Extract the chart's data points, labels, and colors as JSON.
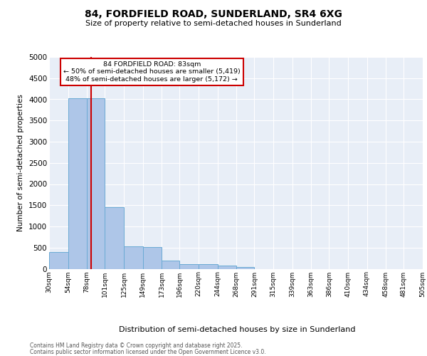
{
  "title": "84, FORDFIELD ROAD, SUNDERLAND, SR4 6XG",
  "subtitle": "Size of property relative to semi-detached houses in Sunderland",
  "xlabel": "Distribution of semi-detached houses by size in Sunderland",
  "ylabel": "Number of semi-detached properties",
  "annotation_title": "84 FORDFIELD ROAD: 83sqm",
  "annotation_line1": "← 50% of semi-detached houses are smaller (5,419)",
  "annotation_line2": "48% of semi-detached houses are larger (5,172) →",
  "footnote1": "Contains HM Land Registry data © Crown copyright and database right 2025.",
  "footnote2": "Contains public sector information licensed under the Open Government Licence v3.0.",
  "property_size": 83,
  "red_line_x": 83,
  "bins": [
    30,
    54,
    78,
    101,
    125,
    149,
    173,
    196,
    220,
    244,
    268,
    291,
    315,
    339,
    363,
    386,
    410,
    434,
    458,
    481,
    505
  ],
  "bin_labels": [
    "30sqm",
    "54sqm",
    "78sqm",
    "101sqm",
    "125sqm",
    "149sqm",
    "173sqm",
    "196sqm",
    "220sqm",
    "244sqm",
    "268sqm",
    "291sqm",
    "315sqm",
    "339sqm",
    "363sqm",
    "386sqm",
    "410sqm",
    "434sqm",
    "458sqm",
    "481sqm",
    "505sqm"
  ],
  "bar_heights": [
    390,
    4020,
    4030,
    1450,
    525,
    520,
    185,
    115,
    115,
    75,
    50,
    0,
    0,
    0,
    0,
    0,
    0,
    0,
    0,
    0
  ],
  "bar_color": "#aec6e8",
  "bar_edge_color": "#6aaad4",
  "red_line_color": "#cc0000",
  "annotation_box_color": "#cc0000",
  "bg_color": "#e8eef7",
  "ylim_max": 5000,
  "yticks": [
    0,
    500,
    1000,
    1500,
    2000,
    2500,
    3000,
    3500,
    4000,
    4500,
    5000
  ]
}
